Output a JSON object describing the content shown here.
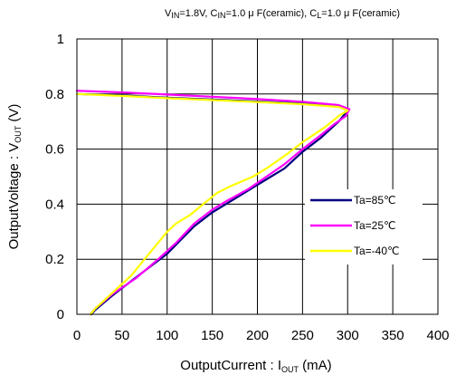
{
  "chart_data": {
    "type": "line",
    "title": {
      "vin_main": "V",
      "vin_sub": "IN",
      "vin_rest": "=1.8V, C",
      "cin_sub": "IN",
      "cin_rest": "=1.0 μ F(ceramic), C",
      "cl_sub": "L",
      "cl_rest": "=1.0 μ F(ceramic)"
    },
    "xlabel": {
      "main": "OutputCurrent : I",
      "sub": "OUT",
      "unit": " (mA)"
    },
    "ylabel": {
      "main": "OutputVoltage : V",
      "sub": "OUT",
      "unit": " (V)"
    },
    "xlim": [
      0,
      400
    ],
    "ylim": [
      0,
      1
    ],
    "x_ticks": [
      0,
      50,
      100,
      150,
      200,
      250,
      300,
      350,
      400
    ],
    "x_tick_labels": [
      "0",
      "50",
      "100",
      "150",
      "200",
      "250",
      "300",
      "350",
      "400"
    ],
    "y_ticks": [
      0,
      0.2,
      0.4,
      0.6,
      0.8,
      1
    ],
    "y_tick_labels": [
      "0",
      "0.2",
      "0.4",
      "0.6",
      "0.8",
      "1"
    ],
    "grid": true,
    "legend_position": "right-inside",
    "series": [
      {
        "name": "Ta=85℃",
        "color": "#000080",
        "points": [
          [
            0,
            0.8
          ],
          [
            50,
            0.795
          ],
          [
            100,
            0.787
          ],
          [
            150,
            0.78
          ],
          [
            200,
            0.773
          ],
          [
            250,
            0.765
          ],
          [
            290,
            0.755
          ],
          [
            300,
            0.74
          ],
          [
            290,
            0.7
          ],
          [
            270,
            0.64
          ],
          [
            250,
            0.59
          ],
          [
            230,
            0.53
          ],
          [
            210,
            0.49
          ],
          [
            200,
            0.47
          ],
          [
            175,
            0.42
          ],
          [
            160,
            0.39
          ],
          [
            150,
            0.37
          ],
          [
            130,
            0.32
          ],
          [
            115,
            0.27
          ],
          [
            100,
            0.22
          ],
          [
            80,
            0.17
          ],
          [
            60,
            0.12
          ],
          [
            40,
            0.07
          ],
          [
            20,
            0.015
          ],
          [
            16,
            0
          ]
        ]
      },
      {
        "name": "Ta=25℃",
        "color": "#ff00ff",
        "points": [
          [
            0,
            0.812
          ],
          [
            50,
            0.806
          ],
          [
            100,
            0.798
          ],
          [
            150,
            0.79
          ],
          [
            200,
            0.782
          ],
          [
            250,
            0.772
          ],
          [
            290,
            0.76
          ],
          [
            302,
            0.745
          ],
          [
            298,
            0.72
          ],
          [
            285,
            0.69
          ],
          [
            270,
            0.65
          ],
          [
            250,
            0.6
          ],
          [
            230,
            0.545
          ],
          [
            210,
            0.5
          ],
          [
            190,
            0.455
          ],
          [
            165,
            0.41
          ],
          [
            150,
            0.38
          ],
          [
            130,
            0.33
          ],
          [
            110,
            0.26
          ],
          [
            90,
            0.2
          ],
          [
            65,
            0.13
          ],
          [
            40,
            0.075
          ],
          [
            20,
            0.02
          ],
          [
            15,
            0
          ]
        ]
      },
      {
        "name": "Ta=-40℃",
        "color": "#ffff00",
        "points": [
          [
            0,
            0.8
          ],
          [
            50,
            0.793
          ],
          [
            100,
            0.785
          ],
          [
            150,
            0.778
          ],
          [
            200,
            0.771
          ],
          [
            250,
            0.763
          ],
          [
            290,
            0.753
          ],
          [
            300,
            0.74
          ],
          [
            290,
            0.72
          ],
          [
            275,
            0.68
          ],
          [
            250,
            0.625
          ],
          [
            230,
            0.575
          ],
          [
            210,
            0.53
          ],
          [
            195,
            0.5
          ],
          [
            170,
            0.465
          ],
          [
            155,
            0.44
          ],
          [
            140,
            0.4
          ],
          [
            125,
            0.36
          ],
          [
            110,
            0.33
          ],
          [
            100,
            0.3
          ],
          [
            80,
            0.22
          ],
          [
            60,
            0.14
          ],
          [
            40,
            0.08
          ],
          [
            20,
            0.02
          ],
          [
            15,
            0
          ]
        ]
      }
    ]
  }
}
